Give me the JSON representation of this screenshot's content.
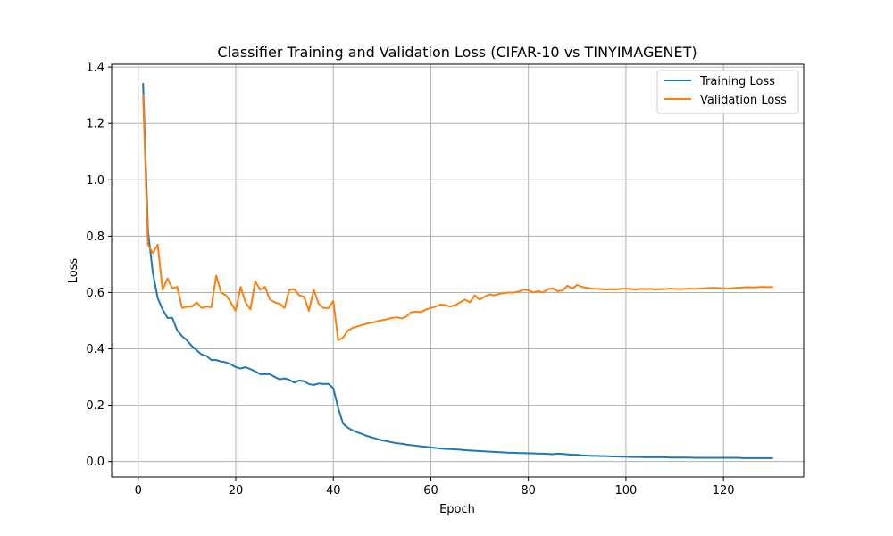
{
  "chart_data": {
    "type": "line",
    "title": "Classifier Training and Validation Loss (CIFAR-10 vs TINYIMAGENET)",
    "xlabel": "Epoch",
    "ylabel": "Loss",
    "xlim": [
      -5.45,
      136.45
    ],
    "ylim": [
      -0.055,
      1.41
    ],
    "xticks": [
      0,
      20,
      40,
      60,
      80,
      100,
      120
    ],
    "yticks": [
      0.0,
      0.2,
      0.4,
      0.6,
      0.8,
      1.0,
      1.2,
      1.4
    ],
    "xtick_labels": [
      "0",
      "20",
      "40",
      "60",
      "80",
      "100",
      "120"
    ],
    "ytick_labels": [
      "0.0",
      "0.2",
      "0.4",
      "0.6",
      "0.8",
      "1.0",
      "1.2",
      "1.4"
    ],
    "grid": true,
    "legend_position": "top-right",
    "series": [
      {
        "name": "Training Loss",
        "color": "#1f77b4",
        "x": [
          1,
          2,
          3,
          4,
          5,
          6,
          7,
          8,
          9,
          10,
          11,
          12,
          13,
          14,
          15,
          16,
          17,
          18,
          19,
          20,
          21,
          22,
          23,
          24,
          25,
          26,
          27,
          28,
          29,
          30,
          31,
          32,
          33,
          34,
          35,
          36,
          37,
          38,
          39,
          40,
          41,
          42,
          43,
          44,
          45,
          46,
          47,
          48,
          49,
          50,
          51,
          52,
          53,
          54,
          55,
          56,
          57,
          58,
          59,
          60,
          61,
          62,
          63,
          64,
          65,
          66,
          67,
          68,
          69,
          70,
          71,
          72,
          73,
          74,
          75,
          76,
          77,
          78,
          79,
          80,
          81,
          82,
          83,
          84,
          85,
          86,
          87,
          88,
          89,
          90,
          91,
          92,
          93,
          94,
          95,
          96,
          97,
          98,
          99,
          100,
          101,
          102,
          103,
          104,
          105,
          106,
          107,
          108,
          109,
          110,
          111,
          112,
          113,
          114,
          115,
          116,
          117,
          118,
          119,
          120,
          121,
          122,
          123,
          124,
          125,
          126,
          127,
          128,
          129,
          130
        ],
        "y": [
          1.34,
          0.82,
          0.67,
          0.58,
          0.54,
          0.51,
          0.51,
          0.465,
          0.445,
          0.43,
          0.41,
          0.395,
          0.38,
          0.375,
          0.36,
          0.36,
          0.355,
          0.352,
          0.345,
          0.335,
          0.33,
          0.335,
          0.328,
          0.32,
          0.31,
          0.31,
          0.31,
          0.3,
          0.292,
          0.295,
          0.29,
          0.28,
          0.288,
          0.285,
          0.275,
          0.272,
          0.277,
          0.275,
          0.276,
          0.26,
          0.19,
          0.135,
          0.12,
          0.11,
          0.103,
          0.097,
          0.09,
          0.085,
          0.08,
          0.075,
          0.072,
          0.068,
          0.065,
          0.063,
          0.06,
          0.058,
          0.056,
          0.054,
          0.052,
          0.05,
          0.048,
          0.046,
          0.045,
          0.044,
          0.043,
          0.042,
          0.04,
          0.039,
          0.038,
          0.037,
          0.036,
          0.035,
          0.034,
          0.033,
          0.032,
          0.031,
          0.031,
          0.03,
          0.03,
          0.029,
          0.029,
          0.028,
          0.028,
          0.027,
          0.026,
          0.028,
          0.027,
          0.025,
          0.024,
          0.024,
          0.022,
          0.021,
          0.02,
          0.02,
          0.019,
          0.019,
          0.018,
          0.018,
          0.017,
          0.017,
          0.016,
          0.016,
          0.016,
          0.015,
          0.015,
          0.015,
          0.015,
          0.015,
          0.014,
          0.014,
          0.014,
          0.014,
          0.014,
          0.013,
          0.013,
          0.013,
          0.013,
          0.013,
          0.013,
          0.013,
          0.013,
          0.013,
          0.013,
          0.012,
          0.012,
          0.012,
          0.012,
          0.012,
          0.012,
          0.012
        ]
      },
      {
        "name": "Validation Loss",
        "color": "#ff7f0e",
        "x": [
          1,
          2,
          3,
          4,
          5,
          6,
          7,
          8,
          9,
          10,
          11,
          12,
          13,
          14,
          15,
          16,
          17,
          18,
          19,
          20,
          21,
          22,
          23,
          24,
          25,
          26,
          27,
          28,
          29,
          30,
          31,
          32,
          33,
          34,
          35,
          36,
          37,
          38,
          39,
          40,
          41,
          42,
          43,
          44,
          45,
          46,
          47,
          48,
          49,
          50,
          51,
          52,
          53,
          54,
          55,
          56,
          57,
          58,
          59,
          60,
          61,
          62,
          63,
          64,
          65,
          66,
          67,
          68,
          69,
          70,
          71,
          72,
          73,
          74,
          75,
          76,
          77,
          78,
          79,
          80,
          81,
          82,
          83,
          84,
          85,
          86,
          87,
          88,
          89,
          90,
          91,
          92,
          93,
          94,
          95,
          96,
          97,
          98,
          99,
          100,
          101,
          102,
          103,
          104,
          105,
          106,
          107,
          108,
          109,
          110,
          111,
          112,
          113,
          114,
          115,
          116,
          117,
          118,
          119,
          120,
          121,
          122,
          123,
          124,
          125,
          126,
          127,
          128,
          129,
          130
        ],
        "y": [
          1.3,
          0.77,
          0.74,
          0.77,
          0.61,
          0.65,
          0.615,
          0.62,
          0.545,
          0.55,
          0.55,
          0.565,
          0.545,
          0.55,
          0.548,
          0.66,
          0.6,
          0.59,
          0.565,
          0.535,
          0.62,
          0.565,
          0.54,
          0.64,
          0.61,
          0.62,
          0.575,
          0.565,
          0.56,
          0.545,
          0.61,
          0.612,
          0.59,
          0.585,
          0.535,
          0.61,
          0.56,
          0.545,
          0.545,
          0.57,
          0.43,
          0.44,
          0.465,
          0.475,
          0.48,
          0.485,
          0.49,
          0.493,
          0.498,
          0.502,
          0.505,
          0.51,
          0.512,
          0.508,
          0.515,
          0.53,
          0.532,
          0.53,
          0.54,
          0.545,
          0.55,
          0.557,
          0.555,
          0.55,
          0.555,
          0.565,
          0.575,
          0.565,
          0.59,
          0.575,
          0.585,
          0.593,
          0.59,
          0.595,
          0.598,
          0.6,
          0.6,
          0.603,
          0.61,
          0.608,
          0.6,
          0.605,
          0.6,
          0.612,
          0.615,
          0.605,
          0.607,
          0.624,
          0.614,
          0.627,
          0.62,
          0.617,
          0.614,
          0.613,
          0.612,
          0.611,
          0.612,
          0.611,
          0.613,
          0.614,
          0.612,
          0.611,
          0.613,
          0.612,
          0.613,
          0.611,
          0.612,
          0.612,
          0.614,
          0.613,
          0.612,
          0.613,
          0.614,
          0.613,
          0.614,
          0.615,
          0.616,
          0.617,
          0.616,
          0.615,
          0.614,
          0.616,
          0.617,
          0.618,
          0.619,
          0.618,
          0.619,
          0.62,
          0.619,
          0.62
        ]
      }
    ]
  }
}
